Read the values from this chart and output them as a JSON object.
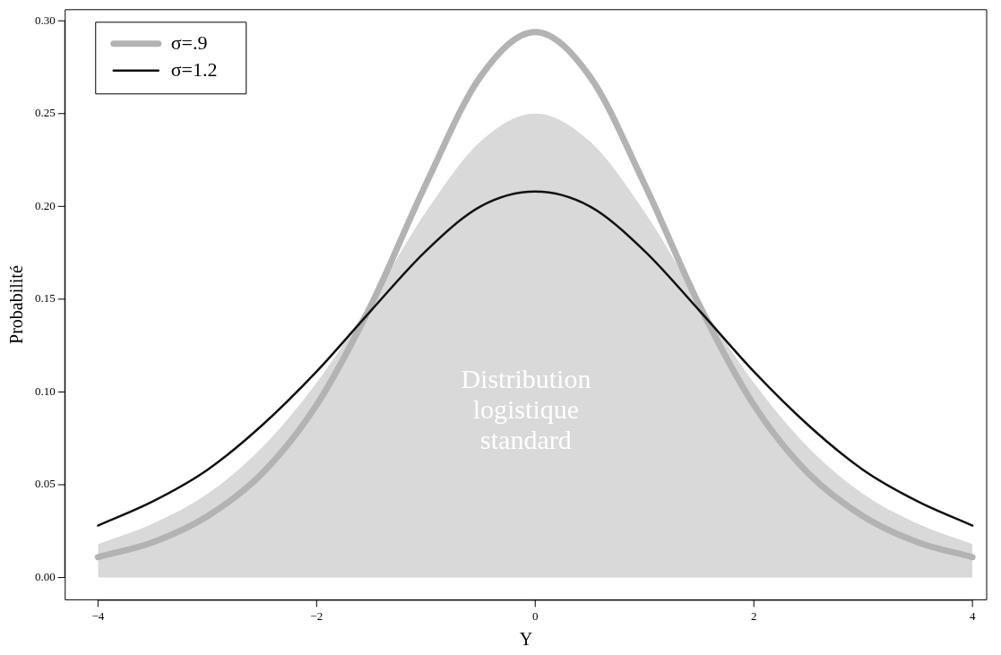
{
  "chart_data": {
    "type": "line",
    "xlabel": "Y",
    "ylabel": "Probabilité",
    "x": [
      -4,
      -3.5,
      -3,
      -2.5,
      -2,
      -1.5,
      -1,
      -0.5,
      0,
      0.5,
      1,
      1.5,
      2,
      2.5,
      3,
      3.5,
      4
    ],
    "series": [
      {
        "type": "area",
        "color": "#d9d9d9",
        "values": [
          0.018,
          0.029,
          0.045,
          0.07,
          0.105,
          0.149,
          0.197,
          0.235,
          0.25,
          0.235,
          0.197,
          0.149,
          0.105,
          0.07,
          0.045,
          0.029,
          0.018
        ]
      },
      {
        "name": "σ=.9",
        "color": "#b3b3b3",
        "values": [
          0.011,
          0.019,
          0.033,
          0.056,
          0.093,
          0.147,
          0.212,
          0.27,
          0.294,
          0.27,
          0.212,
          0.147,
          0.093,
          0.056,
          0.033,
          0.019,
          0.011
        ]
      },
      {
        "name": "σ=1.2",
        "color": "#111111",
        "values": [
          0.028,
          0.041,
          0.058,
          0.082,
          0.111,
          0.144,
          0.176,
          0.2,
          0.208,
          0.2,
          0.176,
          0.144,
          0.111,
          0.082,
          0.058,
          0.041,
          0.028
        ]
      }
    ],
    "xlim": [
      -4.3,
      4.13
    ],
    "ylim": [
      -0.012,
      0.306
    ],
    "xticks": [
      {
        "value": -4,
        "label": "−4"
      },
      {
        "value": -2,
        "label": "−2"
      },
      0,
      2,
      4
    ],
    "yticks": [
      {
        "value": 0,
        "label": "0.00"
      },
      0.05,
      {
        "value": 0.1,
        "label": "0.10"
      },
      0.15,
      {
        "value": 0.2,
        "label": "0.20"
      },
      0.25,
      {
        "value": 0.3,
        "label": "0.30"
      }
    ],
    "annotations": [
      "Distribution\nlogistique\nstandard"
    ],
    "legend": "top left",
    "grid": false,
    "marker": "none",
    "line_style": "solid"
  }
}
